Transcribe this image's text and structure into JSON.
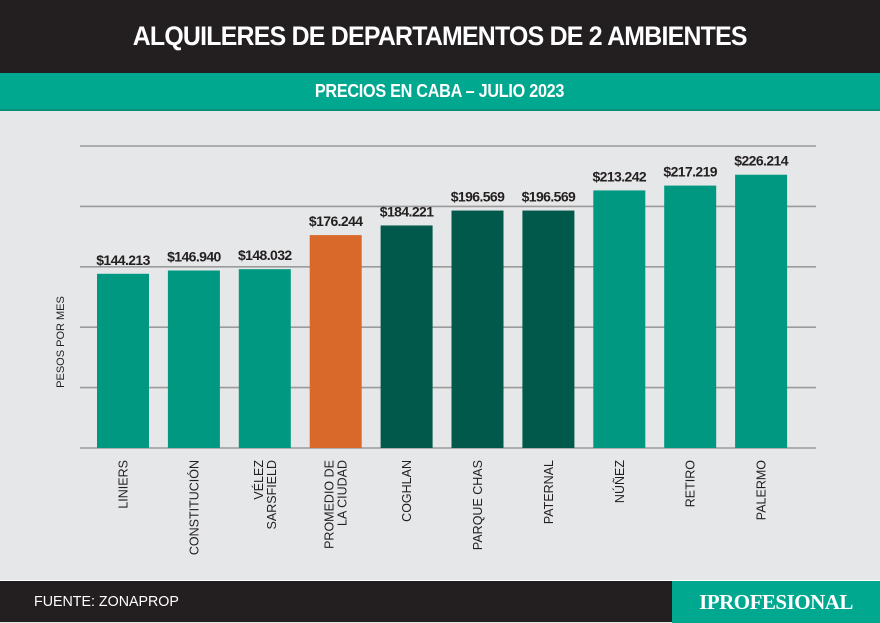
{
  "header": {
    "title": "ALQUILERES DE DEPARTAMENTOS DE 2 AMBIENTES"
  },
  "subheader": {
    "title": "PRECIOS EN CABA – JULIO 2023"
  },
  "footer": {
    "source": "FUENTE: ZONAPROP",
    "brand": "IPROFESIONAL"
  },
  "colors": {
    "header_bg": "#231f20",
    "accent": "#00a88f",
    "bar_light": "#009880",
    "bar_dark": "#00594a",
    "bar_average": "#d9692b",
    "grid": "#9b9b9b"
  },
  "chart_data": {
    "type": "bar",
    "title": "ALQUILERES DE DEPARTAMENTOS DE 2 AMBIENTES",
    "subtitle": "PRECIOS EN CABA – JULIO 2023",
    "xlabel": "",
    "ylabel": "PESOS POR MES",
    "ylim": [
      0,
      250000
    ],
    "yticks": [
      0,
      50000,
      100000,
      150000,
      200000,
      250000
    ],
    "ytick_labels_shown": false,
    "grid": true,
    "categories": [
      [
        "LINIERS"
      ],
      [
        "CONSTITUCIÓN"
      ],
      [
        "VÉLEZ",
        "SARSFIELD"
      ],
      [
        "PROMEDIO DE",
        "LA CIUDAD"
      ],
      [
        "COGHLAN"
      ],
      [
        "PARQUE CHAS"
      ],
      [
        "PATERNAL"
      ],
      [
        "NÚÑEZ"
      ],
      [
        "RETIRO"
      ],
      [
        "PALERMO"
      ]
    ],
    "values": [
      144213,
      146940,
      148032,
      176244,
      184221,
      196569,
      196569,
      213242,
      217219,
      226214
    ],
    "data_labels": [
      "$144.213",
      "$146.940",
      "$148.032",
      "$176.244",
      "$184.221",
      "$196.569",
      "$196.569",
      "$213.242",
      "$217.219",
      "$226.214"
    ],
    "bar_color_keys": [
      "bar_light",
      "bar_light",
      "bar_light",
      "bar_average",
      "bar_dark",
      "bar_dark",
      "bar_dark",
      "bar_light",
      "bar_light",
      "bar_light"
    ],
    "source": "FUENTE: ZONAPROP"
  }
}
